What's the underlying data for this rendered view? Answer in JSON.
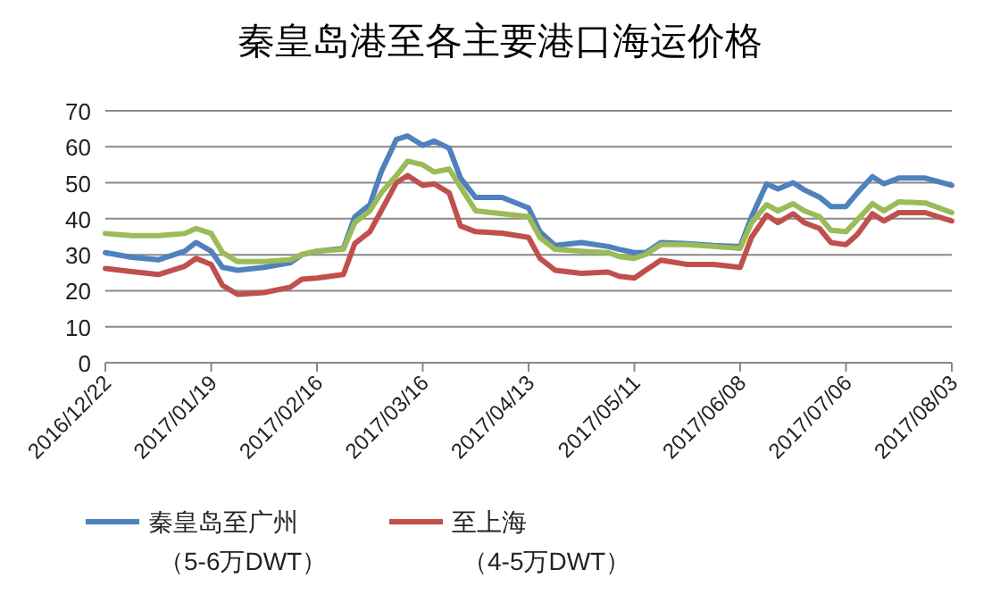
{
  "chart_data": {
    "type": "line",
    "title": "秦皇岛港至各主要港口海运价格",
    "x": [
      "2016-12-22",
      "2016-12-29",
      "2017-01-05",
      "2017-01-12",
      "2017-01-15",
      "2017-01-19",
      "2017-01-22",
      "2017-01-26",
      "2017-02-02",
      "2017-02-09",
      "2017-02-12",
      "2017-02-16",
      "2017-02-23",
      "2017-02-26",
      "2017-03-02",
      "2017-03-05",
      "2017-03-09",
      "2017-03-12",
      "2017-03-16",
      "2017-03-19",
      "2017-03-23",
      "2017-03-26",
      "2017-03-30",
      "2017-04-06",
      "2017-04-13",
      "2017-04-16",
      "2017-04-20",
      "2017-04-27",
      "2017-05-04",
      "2017-05-07",
      "2017-05-11",
      "2017-05-14",
      "2017-05-18",
      "2017-05-25",
      "2017-06-01",
      "2017-06-08",
      "2017-06-11",
      "2017-06-15",
      "2017-06-18",
      "2017-06-22",
      "2017-06-25",
      "2017-06-29",
      "2017-07-02",
      "2017-07-06",
      "2017-07-09",
      "2017-07-13",
      "2017-07-16",
      "2017-07-20",
      "2017-07-27",
      "2017-08-03"
    ],
    "series": [
      {
        "name": "秦皇岛至广州（5-6万DWT）",
        "color": "#4f81bd",
        "values": [
          30.6,
          29.3,
          28.6,
          31,
          33.4,
          31,
          26.5,
          25.7,
          26.5,
          27.8,
          30,
          31,
          31.8,
          40.5,
          43.9,
          53,
          62,
          63,
          60.4,
          61.6,
          59.6,
          51.3,
          45.9,
          45.9,
          43,
          36.4,
          32.6,
          33.4,
          32.3,
          31.5,
          30.6,
          30.6,
          33.4,
          33.1,
          32.6,
          32.3,
          40.5,
          49.7,
          48.3,
          50,
          48,
          46,
          43.4,
          43.4,
          47.2,
          51.7,
          49.7,
          51.3,
          51.3,
          49.3
        ]
      },
      {
        "name": "至上海（4-5万DWT）",
        "color": "#c0504d",
        "values": [
          26.2,
          25.3,
          24.5,
          26.8,
          29,
          27.3,
          21.5,
          19,
          19.5,
          21,
          23.2,
          23.5,
          24.5,
          33.1,
          36.4,
          42.2,
          50,
          52,
          49.3,
          49.7,
          47.2,
          38,
          36.4,
          36,
          34.8,
          29,
          25.7,
          24.8,
          25.2,
          24,
          23.5,
          25.7,
          28.5,
          27.3,
          27.3,
          26.5,
          34.8,
          41,
          38.9,
          41.4,
          38.9,
          37.3,
          33.4,
          32.8,
          35.6,
          41.4,
          39.4,
          41.7,
          41.7,
          39.4
        ]
      },
      {
        "color": "#9bbb59",
        "values": [
          35.9,
          35.3,
          35.3,
          35.9,
          37.3,
          35.9,
          30.6,
          28.1,
          28.1,
          28.6,
          30.1,
          31,
          31.5,
          38.9,
          42.2,
          47.2,
          52,
          56,
          55,
          53,
          53.8,
          48.8,
          42.2,
          41.4,
          40.6,
          34.8,
          31.5,
          31,
          30.6,
          29.5,
          29,
          30.1,
          32.8,
          32.8,
          32.3,
          31.8,
          38.9,
          43.9,
          42.2,
          44.2,
          42.2,
          40.6,
          36.8,
          36.4,
          39.7,
          44.2,
          42.2,
          44.7,
          44.4,
          41.7
        ]
      }
    ],
    "xlim": [
      "2016-12-22",
      "2017-08-03"
    ],
    "xticks": [
      {
        "value": "2016-12-22",
        "label": "2016/12/22"
      },
      {
        "value": "2017-01-19",
        "label": "2017/01/19"
      },
      {
        "value": "2017-02-16",
        "label": "2017/02/16"
      },
      {
        "value": "2017-03-16",
        "label": "2017/03/16"
      },
      {
        "value": "2017-04-13",
        "label": "2017/04/13"
      },
      {
        "value": "2017-05-11",
        "label": "2017/05/11"
      },
      {
        "value": "2017-06-08",
        "label": "2017/06/08"
      },
      {
        "value": "2017-07-06",
        "label": "2017/07/06"
      },
      {
        "value": "2017-08-03",
        "label": "2017/08/03"
      }
    ],
    "ylim": [
      0,
      70
    ],
    "yticks": [
      0,
      10,
      20,
      30,
      40,
      50,
      60,
      70
    ],
    "grid": "y",
    "legend": "bottom",
    "marker": "none",
    "line_style": "solid"
  }
}
